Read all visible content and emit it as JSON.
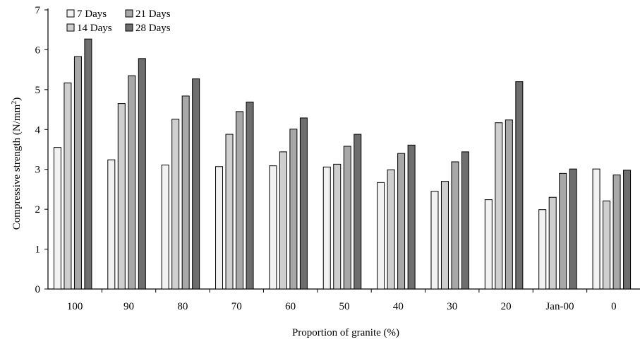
{
  "chart_data": {
    "type": "bar",
    "title": "",
    "xlabel": "Proportion of granite (%)",
    "ylabel_main": "Compressive strength (N/mm",
    "ylabel_sup": "2",
    "ylabel_close": ")",
    "ylim": [
      0,
      7
    ],
    "yticks": [
      "0",
      "1",
      "2",
      "3",
      "4",
      "5",
      "6",
      "7"
    ],
    "categories": [
      "100",
      "90",
      "80",
      "70",
      "60",
      "50",
      "40",
      "30",
      "20",
      "Jan-00",
      "0"
    ],
    "legend_position": "top-left",
    "series": [
      {
        "name": "7 Days",
        "color": "#f2f2f2",
        "values": [
          3.55,
          3.24,
          3.11,
          3.07,
          3.09,
          3.06,
          2.67,
          2.45,
          2.24,
          1.99,
          3.01
        ]
      },
      {
        "name": "14 Days",
        "color": "#cfcfcf",
        "values": [
          5.17,
          4.65,
          4.26,
          3.88,
          3.44,
          3.13,
          2.99,
          2.7,
          4.17,
          2.3,
          2.21
        ]
      },
      {
        "name": "21 Days",
        "color": "#a8a8a8",
        "values": [
          5.83,
          5.35,
          4.84,
          4.45,
          4.01,
          3.58,
          3.4,
          3.19,
          4.24,
          2.9,
          2.86
        ]
      },
      {
        "name": "28 Days",
        "color": "#6e6e6e",
        "values": [
          6.27,
          5.78,
          5.27,
          4.69,
          4.29,
          3.88,
          3.61,
          3.44,
          5.2,
          3.01,
          2.98
        ]
      }
    ]
  }
}
